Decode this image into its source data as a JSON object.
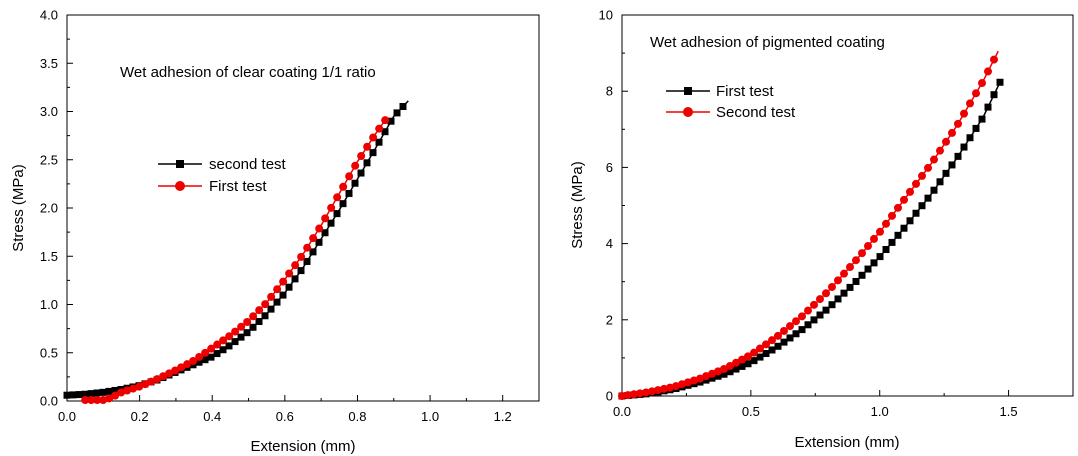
{
  "chart_data": [
    {
      "type": "scatter",
      "title": "",
      "annotation": "Wet adhesion of clear coating 1/1 ratio",
      "xlabel": "Extension (mm)",
      "ylabel": "Stress (MPa)",
      "xlim": [
        0.0,
        1.3
      ],
      "ylim": [
        0.0,
        4.0
      ],
      "xticks": [
        0.0,
        0.2,
        0.4,
        0.6,
        0.8,
        1.0,
        1.2
      ],
      "xtick_labels": [
        "0.0",
        "0.2",
        "0.4",
        "0.6",
        "0.8",
        "1.0",
        "1.2"
      ],
      "yticks": [
        0.0,
        0.5,
        1.0,
        1.5,
        2.0,
        2.5,
        3.0,
        3.5,
        4.0
      ],
      "ytick_labels": [
        "0.0",
        "0.5",
        "1.0",
        "1.5",
        "2.0",
        "2.5",
        "3.0",
        "3.5",
        "4.0"
      ],
      "grid": false,
      "legend_position": "center-left",
      "series": [
        {
          "name": "second test",
          "marker": "square",
          "color": "#000000",
          "x": [
            0.0,
            0.05,
            0.1,
            0.15,
            0.2,
            0.25,
            0.3,
            0.35,
            0.4,
            0.45,
            0.5,
            0.55,
            0.6,
            0.65,
            0.7,
            0.75,
            0.8,
            0.85,
            0.9,
            0.94
          ],
          "y": [
            0.06,
            0.07,
            0.09,
            0.12,
            0.16,
            0.22,
            0.3,
            0.38,
            0.46,
            0.58,
            0.72,
            0.9,
            1.12,
            1.38,
            1.68,
            1.98,
            2.3,
            2.62,
            2.95,
            3.11
          ]
        },
        {
          "name": "First test",
          "marker": "circle",
          "color": "#ee0000",
          "x": [
            0.05,
            0.1,
            0.12,
            0.15,
            0.2,
            0.25,
            0.3,
            0.35,
            0.4,
            0.45,
            0.5,
            0.55,
            0.6,
            0.65,
            0.7,
            0.75,
            0.8,
            0.85,
            0.88
          ],
          "y": [
            0.01,
            0.01,
            0.03,
            0.09,
            0.15,
            0.23,
            0.32,
            0.42,
            0.55,
            0.68,
            0.83,
            1.02,
            1.26,
            1.52,
            1.82,
            2.15,
            2.48,
            2.77,
            2.93
          ]
        }
      ]
    },
    {
      "type": "scatter",
      "title": "",
      "annotation": "Wet adhesion of pigmented coating",
      "xlabel": "Extension (mm)",
      "ylabel": "Stress (MPa)",
      "xlim": [
        0.0,
        1.75
      ],
      "ylim": [
        0,
        10
      ],
      "xticks": [
        0.0,
        0.5,
        1.0,
        1.5
      ],
      "xtick_labels": [
        "0.0",
        "0.5",
        "1.0",
        "1.5"
      ],
      "yticks": [
        0,
        2,
        4,
        6,
        8,
        10
      ],
      "ytick_labels": [
        "0",
        "2",
        "4",
        "6",
        "8",
        "10"
      ],
      "grid": false,
      "legend_position": "top-left",
      "series": [
        {
          "name": "First test",
          "marker": "square",
          "color": "#000000",
          "x": [
            0.0,
            0.1,
            0.2,
            0.3,
            0.4,
            0.5,
            0.6,
            0.7,
            0.8,
            0.9,
            1.0,
            1.1,
            1.2,
            1.3,
            1.4,
            1.47
          ],
          "y": [
            0.0,
            0.06,
            0.18,
            0.36,
            0.58,
            0.88,
            1.28,
            1.75,
            2.3,
            2.95,
            3.65,
            4.45,
            5.3,
            6.25,
            7.3,
            8.28
          ]
        },
        {
          "name": "Second test",
          "marker": "circle",
          "color": "#ee0000",
          "x": [
            0.0,
            0.1,
            0.2,
            0.3,
            0.4,
            0.5,
            0.6,
            0.7,
            0.8,
            0.9,
            1.0,
            1.1,
            1.2,
            1.3,
            1.4,
            1.46
          ],
          "y": [
            0.0,
            0.1,
            0.24,
            0.45,
            0.72,
            1.08,
            1.55,
            2.1,
            2.75,
            3.5,
            4.3,
            5.2,
            6.1,
            7.1,
            8.25,
            9.05
          ]
        }
      ]
    }
  ]
}
